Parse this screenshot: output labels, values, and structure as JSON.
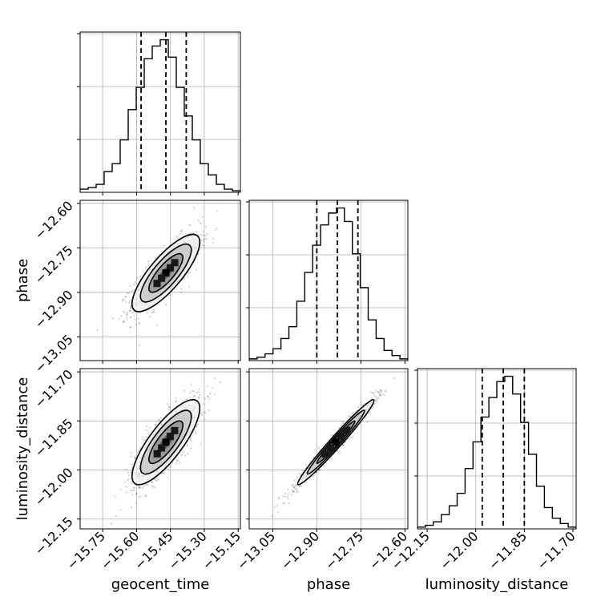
{
  "chart_data": {
    "type": "corner",
    "title": "",
    "parameters": [
      {
        "name": "geocent_time",
        "label": "geocent_time",
        "range": [
          -15.85,
          -15.14
        ],
        "ticks": [
          -15.75,
          -15.6,
          -15.45,
          -15.3,
          -15.15
        ],
        "tick_labels": [
          "−15.75",
          "−15.60",
          "−15.45",
          "−15.30",
          "−15.15"
        ],
        "quantiles": [
          -15.58,
          -15.47,
          -15.38
        ],
        "hist_bin_edges": [
          -15.85,
          -15.8145,
          -15.779,
          -15.7435,
          -15.708,
          -15.6725,
          -15.637,
          -15.6015,
          -15.566,
          -15.5305,
          -15.495,
          -15.4595,
          -15.424,
          -15.3885,
          -15.353,
          -15.3175,
          -15.282,
          -15.2465,
          -15.211,
          -15.1755,
          -15.14
        ],
        "hist_counts": [
          2,
          3,
          5,
          13,
          18,
          33,
          52,
          66,
          84,
          92,
          96,
          85,
          66,
          48,
          33,
          18,
          11,
          5,
          2,
          1
        ]
      },
      {
        "name": "phase",
        "label": "phase",
        "range": [
          -13.13,
          -12.59
        ],
        "ticks": [
          -13.05,
          -12.9,
          -12.75,
          -12.6
        ],
        "tick_labels": [
          "−13.05",
          "−12.90",
          "−12.75",
          "−12.60"
        ],
        "quantiles": [
          -12.9,
          -12.83,
          -12.76
        ],
        "hist_bin_edges": [
          -13.13,
          -13.103,
          -13.076,
          -13.049,
          -13.022,
          -12.995,
          -12.968,
          -12.941,
          -12.914,
          -12.887,
          -12.86,
          -12.833,
          -12.806,
          -12.779,
          -12.752,
          -12.725,
          -12.698,
          -12.671,
          -12.644,
          -12.617,
          -12.59
        ],
        "hist_counts": [
          1,
          2,
          4,
          7,
          13,
          20,
          35,
          52,
          68,
          80,
          87,
          90,
          82,
          63,
          43,
          24,
          13,
          6,
          3,
          1
        ]
      },
      {
        "name": "luminosity_distance",
        "label": "luminosity_distance",
        "range": [
          -12.18,
          -11.69
        ],
        "ticks": [
          -12.15,
          -12.0,
          -11.85,
          -11.7
        ],
        "tick_labels": [
          "−12.15",
          "−12.00",
          "−11.85",
          "−11.70"
        ],
        "quantiles": [
          -11.98,
          -11.915,
          -11.85
        ],
        "hist_bin_edges": [
          -12.18,
          -12.1555,
          -12.131,
          -12.1065,
          -12.082,
          -12.0575,
          -12.033,
          -12.0085,
          -11.984,
          -11.9595,
          -11.935,
          -11.9105,
          -11.886,
          -11.8615,
          -11.837,
          -11.8125,
          -11.788,
          -11.7635,
          -11.739,
          -11.7145,
          -11.69
        ],
        "hist_counts": [
          1,
          2,
          4,
          8,
          13,
          20,
          34,
          49,
          63,
          74,
          83,
          86,
          76,
          60,
          42,
          24,
          12,
          6,
          3,
          1
        ]
      }
    ],
    "pairs": [
      {
        "x": "geocent_time",
        "y": "phase",
        "mean": [
          -15.47,
          -12.835
        ],
        "sigma": [
          0.075,
          0.065
        ],
        "correlation": 0.8,
        "n_samples": 1100
      },
      {
        "x": "geocent_time",
        "y": "luminosity_distance",
        "mean": [
          -15.47,
          -11.915
        ],
        "sigma": [
          0.075,
          0.065
        ],
        "correlation": 0.8,
        "n_samples": 1100
      },
      {
        "x": "phase",
        "y": "luminosity_distance",
        "mean": [
          -12.835,
          -11.915
        ],
        "sigma": [
          0.065,
          0.065
        ],
        "correlation": 0.98,
        "n_samples": 1100
      }
    ],
    "contour_levels_sigma": [
      0.5,
      1.0,
      1.5,
      2.0
    ],
    "grid": true,
    "legend": "none"
  }
}
